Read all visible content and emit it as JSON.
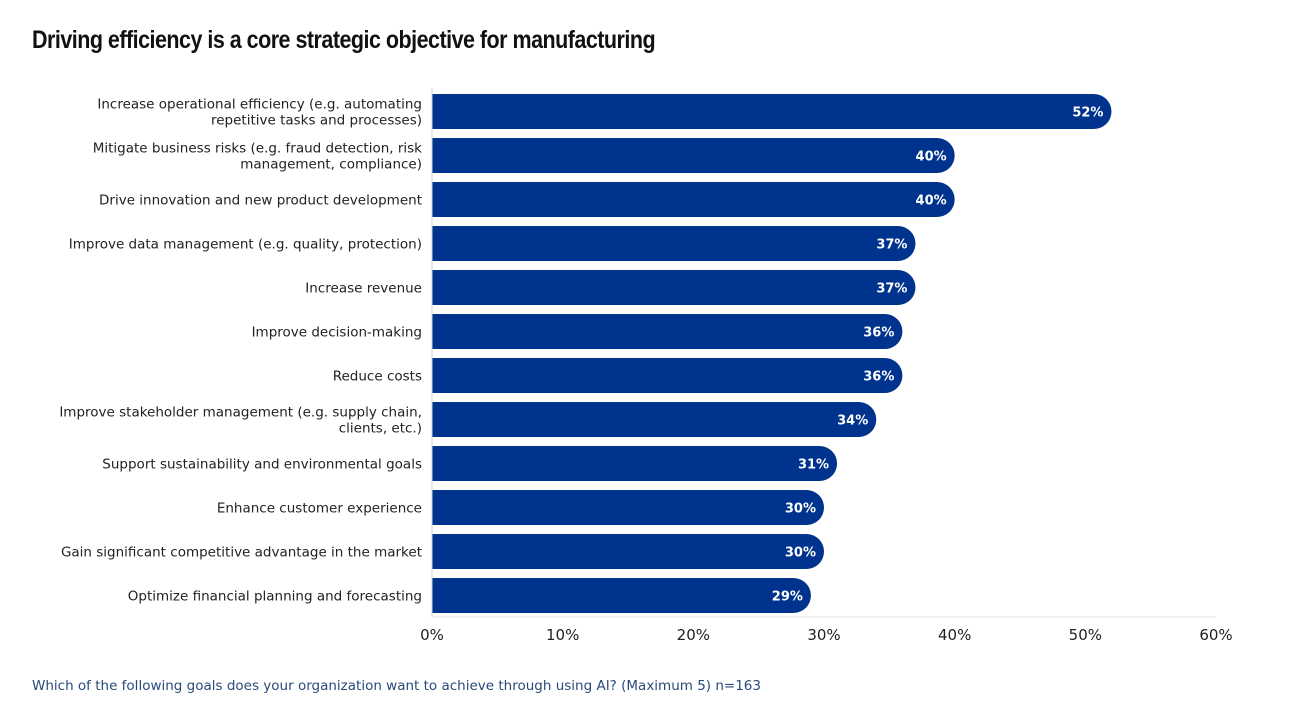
{
  "chart_data": {
    "type": "bar",
    "orientation": "horizontal",
    "title": "Driving efficiency is a core strategic objective for manufacturing",
    "footnote": "Which of the following goals does your organization want to achieve through using AI? (Maximum 5) n=163",
    "categories": [
      [
        "Increase operational efficiency (e.g. automating",
        "repetitive tasks and processes)"
      ],
      [
        "Mitigate business risks (e.g. fraud detection, risk",
        "management, compliance)"
      ],
      [
        "Drive innovation and new product development"
      ],
      [
        "Improve data management (e.g. quality, protection)"
      ],
      [
        "Increase revenue"
      ],
      [
        "Improve decision-making"
      ],
      [
        "Reduce costs"
      ],
      [
        "Improve stakeholder management (e.g. supply chain,",
        "clients, etc.)"
      ],
      [
        "Support sustainability and environmental goals"
      ],
      [
        "Enhance customer experience"
      ],
      [
        "Gain significant competitive advantage in the market"
      ],
      [
        "Optimize financial planning and forecasting"
      ]
    ],
    "values": [
      52,
      40,
      40,
      37,
      37,
      36,
      36,
      34,
      31,
      30,
      30,
      29
    ],
    "value_labels": [
      "52%",
      "40%",
      "40%",
      "37%",
      "37%",
      "36%",
      "36%",
      "34%",
      "31%",
      "30%",
      "30%",
      "29%"
    ],
    "xlabel": "",
    "ylabel": "",
    "xlim": [
      0,
      60
    ],
    "xticks": [
      0,
      10,
      20,
      30,
      40,
      50,
      60
    ],
    "xtick_labels": [
      "0%",
      "10%",
      "20%",
      "30%",
      "40%",
      "50%",
      "60%"
    ],
    "grid": false,
    "legend": "none",
    "colors": {
      "bar": "#00338d",
      "value_label": "#ffffff",
      "footnote": "#2a4a7a"
    }
  }
}
